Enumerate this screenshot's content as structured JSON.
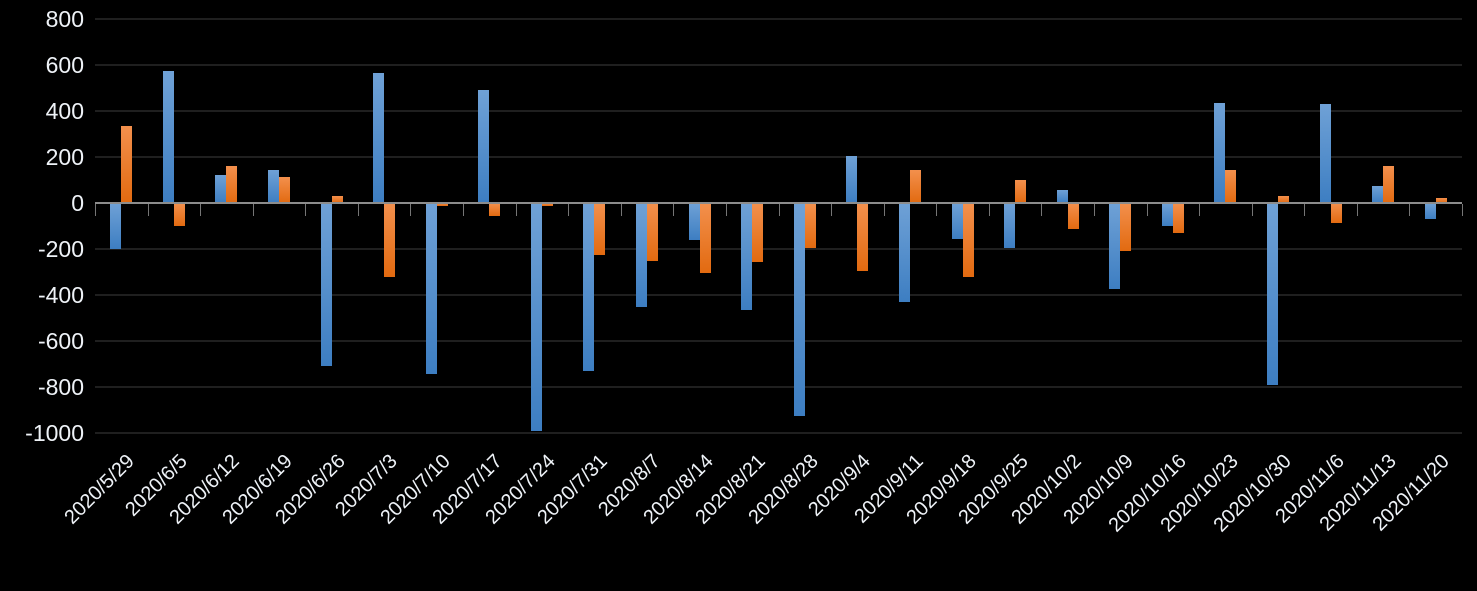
{
  "chart": {
    "background": "#000000",
    "axis_color": "#8c8c8c",
    "tick_color": "#757575",
    "grid_color": "#1f1f1f",
    "label_color": "#eef2f7"
  },
  "chart_data": {
    "type": "bar",
    "title": "",
    "xlabel": "",
    "ylabel": "",
    "legend": "none",
    "grid": true,
    "ylim": [
      -1000,
      800
    ],
    "y_tick_step": 200,
    "y_ticks": [
      800,
      600,
      400,
      200,
      0,
      -200,
      -400,
      -600,
      -800,
      -1000
    ],
    "categories": [
      "2020/5/29",
      "2020/6/5",
      "2020/6/12",
      "2020/6/19",
      "2020/6/26",
      "2020/7/3",
      "2020/7/10",
      "2020/7/17",
      "2020/7/24",
      "2020/7/31",
      "2020/8/7",
      "2020/8/14",
      "2020/8/21",
      "2020/8/28",
      "2020/9/4",
      "2020/9/11",
      "2020/9/18",
      "2020/9/25",
      "2020/10/2",
      "2020/10/9",
      "2020/10/16",
      "2020/10/23",
      "2020/10/30",
      "2020/11/6",
      "2020/11/13",
      "2020/11/20"
    ],
    "series": [
      {
        "name": "blue",
        "color": "#4e8cc8",
        "gradient": [
          "#6fa1d6",
          "#3d7ec2"
        ],
        "values": [
          -200,
          575,
          120,
          145,
          -710,
          565,
          -745,
          490,
          -990,
          -730,
          -450,
          -160,
          -465,
          -925,
          205,
          -430,
          -155,
          -195,
          55,
          -375,
          -100,
          435,
          -790,
          430,
          75,
          -70
        ]
      },
      {
        "name": "orange",
        "color": "#ed7d31",
        "gradient": [
          "#f3904d",
          "#e26a10"
        ],
        "values": [
          335,
          -100,
          160,
          115,
          30,
          -320,
          -15,
          -55,
          -15,
          -225,
          -250,
          -305,
          -255,
          -195,
          -295,
          145,
          -320,
          100,
          -115,
          -210,
          -130,
          145,
          30,
          -85,
          160,
          20
        ]
      }
    ]
  }
}
